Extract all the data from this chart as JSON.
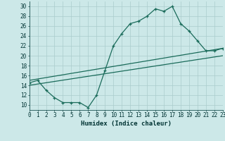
{
  "xlabel": "Humidex (Indice chaleur)",
  "bg_color": "#cce8e8",
  "grid_color": "#aacccc",
  "line_color": "#1a6b5a",
  "xlim": [
    0,
    23
  ],
  "ylim": [
    9,
    31
  ],
  "xticks": [
    0,
    1,
    2,
    3,
    4,
    5,
    6,
    7,
    8,
    9,
    10,
    11,
    12,
    13,
    14,
    15,
    16,
    17,
    18,
    19,
    20,
    21,
    22,
    23
  ],
  "yticks": [
    10,
    12,
    14,
    16,
    18,
    20,
    22,
    24,
    26,
    28,
    30
  ],
  "curve1_x": [
    0,
    1,
    2,
    3,
    4,
    5,
    6,
    7,
    8,
    9,
    10,
    11,
    12,
    13,
    14,
    15,
    16,
    17,
    18,
    19,
    20,
    21,
    22,
    23
  ],
  "curve1_y": [
    14.5,
    15.0,
    13.0,
    11.5,
    10.5,
    10.5,
    10.5,
    9.5,
    12.0,
    17.0,
    22.0,
    24.5,
    26.5,
    27.0,
    28.0,
    29.5,
    29.0,
    30.0,
    26.5,
    25.0,
    23.0,
    21.0,
    21.0,
    21.5
  ],
  "curve2_x": [
    0,
    23
  ],
  "curve2_y": [
    15.0,
    21.5
  ],
  "curve3_x": [
    0,
    23
  ],
  "curve3_y": [
    14.0,
    20.0
  ]
}
